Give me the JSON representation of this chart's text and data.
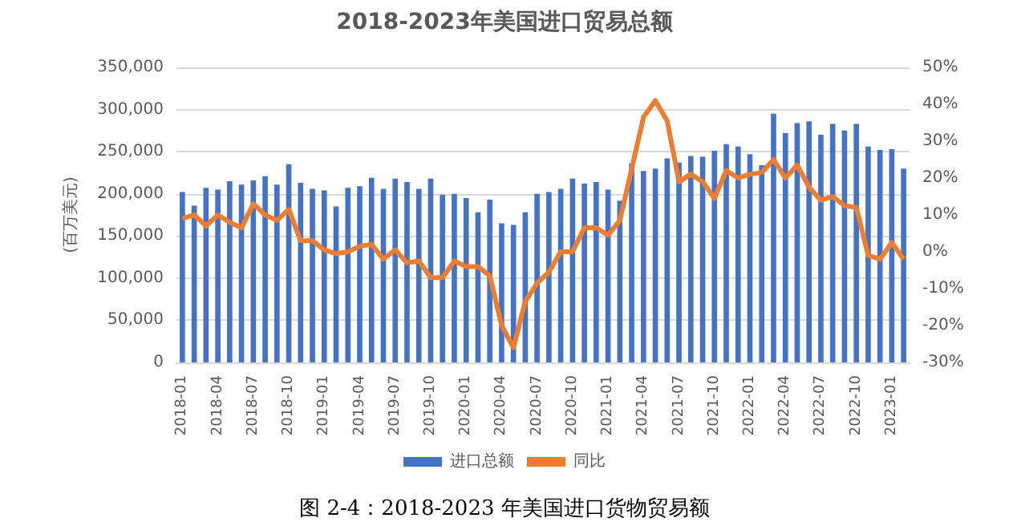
{
  "chart_data": {
    "type": "bar",
    "title": "2018-2023年美国进口贸易总额",
    "ylabel": "(百万美元)",
    "categories": [
      "2018-01",
      null,
      null,
      "2018-04",
      null,
      null,
      "2018-07",
      null,
      null,
      "2018-10",
      null,
      null,
      "2019-01",
      null,
      null,
      "2019-04",
      null,
      null,
      "2019-07",
      null,
      null,
      "2019-10",
      null,
      null,
      "2020-01",
      null,
      null,
      "2020-04",
      null,
      null,
      "2020-07",
      null,
      null,
      "2020-10",
      null,
      null,
      "2021-01",
      null,
      null,
      "2021-04",
      null,
      null,
      "2021-07",
      null,
      null,
      "2021-10",
      null,
      null,
      "2022-01",
      null,
      null,
      "2022-04",
      null,
      null,
      "2022-07",
      null,
      null,
      "2022-10",
      null,
      null,
      "2023-01",
      null
    ],
    "series": [
      {
        "name": "进口总额",
        "color": "#4472c4",
        "values": [
          202000,
          186000,
          207000,
          205000,
          215000,
          211000,
          216000,
          221000,
          211000,
          235000,
          213000,
          206000,
          204000,
          185000,
          207000,
          209000,
          219000,
          206000,
          218000,
          214000,
          206000,
          218000,
          199000,
          200000,
          195000,
          178000,
          193000,
          165000,
          163000,
          178000,
          200000,
          202000,
          206000,
          218000,
          212000,
          214000,
          205000,
          192000,
          236000,
          227000,
          230000,
          242000,
          237000,
          245000,
          244000,
          251000,
          259000,
          256000,
          247000,
          234000,
          295000,
          272000,
          284000,
          286000,
          270000,
          283000,
          275000,
          283000,
          256000,
          252000,
          253000,
          230000
        ]
      },
      {
        "name": "同比",
        "type": "line",
        "axis": "y2",
        "color": "#ed7d31",
        "values": [
          9,
          10,
          7,
          10,
          8,
          6.5,
          13,
          10,
          8.5,
          11.5,
          3,
          3,
          0.5,
          -0.5,
          0,
          1.5,
          2,
          -2,
          0.5,
          -3,
          -2.5,
          -7,
          -7,
          -2.5,
          -4,
          -4,
          -6.5,
          -20,
          -26,
          -13.5,
          -8.5,
          -5.5,
          0,
          0,
          6.5,
          6.5,
          4.5,
          8.5,
          22.5,
          36.5,
          41,
          35.5,
          19,
          21,
          19,
          14.5,
          22,
          20,
          21,
          21.5,
          25,
          20,
          23.5,
          17.5,
          14,
          15,
          12.5,
          12,
          -1,
          -2,
          2.5,
          -2
        ]
      }
    ],
    "ylim": [
      0,
      350000
    ],
    "yticks": [
      {
        "value": 0,
        "label": "0"
      },
      {
        "value": 50000,
        "label": "50,000"
      },
      {
        "value": 100000,
        "label": "100,000"
      },
      {
        "value": 150000,
        "label": "150,000"
      },
      {
        "value": 200000,
        "label": "200,000"
      },
      {
        "value": 250000,
        "label": "250,000"
      },
      {
        "value": 300000,
        "label": "300,000"
      },
      {
        "value": 350000,
        "label": "350,000"
      }
    ],
    "y2lim": [
      -30,
      50
    ],
    "y2ticks": [
      {
        "value": -30,
        "label": "-30%"
      },
      {
        "value": -20,
        "label": "-20%"
      },
      {
        "value": -10,
        "label": "-10%"
      },
      {
        "value": 0,
        "label": "0%"
      },
      {
        "value": 10,
        "label": "10%"
      },
      {
        "value": 20,
        "label": "20%"
      },
      {
        "value": 30,
        "label": "30%"
      },
      {
        "value": 40,
        "label": "40%"
      },
      {
        "value": 50,
        "label": "50%"
      }
    ],
    "grid": "y",
    "legend": "bottom",
    "marker": "none",
    "annotations": [
      "图 2-4：2018-2023 年美国进口货物贸易额"
    ]
  }
}
